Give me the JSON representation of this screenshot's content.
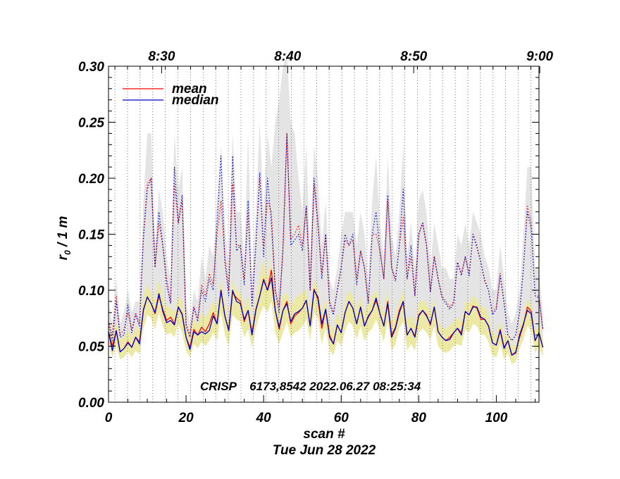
{
  "chart_data": {
    "type": "line",
    "ylabel_r": "r",
    "ylabel_sub": "0",
    "ylabel_rest": " / 1 m",
    "xlabel": "scan #",
    "date_label": "Tue Jun 28 2022",
    "annotation": "CRISP    6173,8542 2022.06.27 08:25:34",
    "xlim": [
      0,
      111
    ],
    "ylim": [
      0,
      0.3
    ],
    "x_ticks": [
      0,
      20,
      40,
      60,
      80,
      100
    ],
    "x_tick_labels": [
      "0",
      "20",
      "40",
      "60",
      "80",
      "100"
    ],
    "y_ticks": [
      0.0,
      0.05,
      0.1,
      0.15,
      0.2,
      0.25,
      0.3
    ],
    "y_tick_labels": [
      "0.00",
      "0.05",
      "0.10",
      "0.15",
      "0.20",
      "0.25",
      "0.30"
    ],
    "top_axis_ticks": [
      {
        "x": 13.7,
        "label": "8:30"
      },
      {
        "x": 46.2,
        "label": "8:40"
      },
      {
        "x": 78.7,
        "label": "8:50"
      },
      {
        "x": 111.2,
        "label": "9:00"
      }
    ],
    "minute_marks": [
      1.65,
      4.9,
      8.15,
      11.4,
      14.65,
      17.9,
      21.15,
      24.4,
      27.65,
      30.9,
      34.15,
      37.4,
      40.65,
      43.9,
      47.15,
      50.4,
      53.65,
      56.9,
      60.15,
      63.4,
      66.65,
      69.9,
      73.15,
      76.4,
      79.65,
      82.9,
      86.15,
      89.4,
      92.65,
      95.9,
      99.15,
      102.4,
      105.65,
      108.9
    ],
    "legend": {
      "position": "top-left",
      "entries": [
        {
          "label": "mean",
          "color": "#ff0000"
        },
        {
          "label": "median",
          "color": "#0000c8"
        }
      ]
    },
    "colors": {
      "mean": "#ff0000",
      "median": "#0000c8",
      "gray_band": "#e4e4e4",
      "yellow_band": "#ece9a4",
      "grid": "#555555"
    },
    "series": [
      {
        "name": "mean (lower)",
        "style": "solid",
        "color": "#ff0000",
        "values": [
          0.063,
          0.05,
          0.064,
          0.045,
          0.048,
          0.054,
          0.049,
          0.058,
          0.054,
          0.083,
          0.094,
          0.088,
          0.079,
          0.095,
          0.083,
          0.073,
          0.076,
          0.07,
          0.085,
          0.079,
          0.058,
          0.049,
          0.065,
          0.06,
          0.067,
          0.063,
          0.07,
          0.08,
          0.07,
          0.1,
          0.077,
          0.064,
          0.098,
          0.093,
          0.09,
          0.072,
          0.082,
          0.062,
          0.083,
          0.095,
          0.11,
          0.1,
          0.118,
          0.082,
          0.065,
          0.082,
          0.09,
          0.07,
          0.077,
          0.08,
          0.084,
          0.091,
          0.068,
          0.101,
          0.092,
          0.066,
          0.083,
          0.06,
          0.052,
          0.069,
          0.062,
          0.08,
          0.09,
          0.084,
          0.07,
          0.085,
          0.068,
          0.076,
          0.082,
          0.091,
          0.079,
          0.068,
          0.09,
          0.06,
          0.067,
          0.082,
          0.09,
          0.06,
          0.066,
          0.059,
          0.078,
          0.082,
          0.078,
          0.069,
          0.085,
          0.063,
          0.058,
          0.055,
          0.058,
          0.062,
          0.066,
          0.062,
          0.081,
          0.078,
          0.086,
          0.084,
          0.074,
          0.074,
          0.068,
          0.053,
          0.051,
          0.065,
          0.049,
          0.055,
          0.042,
          0.045,
          0.058,
          0.069,
          0.085,
          0.081,
          0.055,
          0.062,
          0.049
        ]
      },
      {
        "name": "median (lower)",
        "style": "solid",
        "color": "#0000c8",
        "values": [
          0.063,
          0.046,
          0.064,
          0.045,
          0.048,
          0.053,
          0.049,
          0.058,
          0.052,
          0.082,
          0.094,
          0.088,
          0.08,
          0.097,
          0.081,
          0.071,
          0.073,
          0.069,
          0.085,
          0.078,
          0.058,
          0.047,
          0.063,
          0.06,
          0.063,
          0.061,
          0.064,
          0.077,
          0.07,
          0.1,
          0.077,
          0.064,
          0.1,
          0.09,
          0.088,
          0.074,
          0.082,
          0.06,
          0.082,
          0.095,
          0.109,
          0.1,
          0.111,
          0.082,
          0.067,
          0.082,
          0.088,
          0.072,
          0.079,
          0.081,
          0.084,
          0.091,
          0.068,
          0.1,
          0.094,
          0.07,
          0.083,
          0.058,
          0.052,
          0.069,
          0.062,
          0.08,
          0.09,
          0.084,
          0.07,
          0.085,
          0.068,
          0.077,
          0.082,
          0.093,
          0.079,
          0.068,
          0.088,
          0.058,
          0.066,
          0.08,
          0.09,
          0.06,
          0.066,
          0.058,
          0.077,
          0.082,
          0.077,
          0.07,
          0.085,
          0.063,
          0.058,
          0.055,
          0.056,
          0.062,
          0.066,
          0.06,
          0.081,
          0.078,
          0.085,
          0.085,
          0.076,
          0.074,
          0.068,
          0.053,
          0.051,
          0.064,
          0.048,
          0.055,
          0.042,
          0.044,
          0.06,
          0.07,
          0.082,
          0.079,
          0.055,
          0.062,
          0.049
        ]
      },
      {
        "name": "mean (upper)",
        "style": "dotted",
        "color": "#ff0000",
        "values": [
          0.072,
          0.06,
          0.095,
          0.06,
          0.065,
          0.08,
          0.065,
          0.08,
          0.07,
          0.15,
          0.195,
          0.2,
          0.122,
          0.16,
          0.14,
          0.11,
          0.09,
          0.195,
          0.16,
          0.18,
          0.07,
          0.06,
          0.085,
          0.075,
          0.105,
          0.095,
          0.115,
          0.105,
          0.15,
          0.18,
          0.13,
          0.1,
          0.195,
          0.14,
          0.14,
          0.11,
          0.17,
          0.09,
          0.14,
          0.2,
          0.14,
          0.18,
          0.17,
          0.1,
          0.085,
          0.135,
          0.24,
          0.145,
          0.15,
          0.158,
          0.14,
          0.175,
          0.1,
          0.195,
          0.16,
          0.115,
          0.15,
          0.09,
          0.08,
          0.1,
          0.12,
          0.145,
          0.14,
          0.145,
          0.11,
          0.135,
          0.12,
          0.09,
          0.15,
          0.15,
          0.135,
          0.11,
          0.18,
          0.12,
          0.11,
          0.14,
          0.165,
          0.11,
          0.13,
          0.095,
          0.15,
          0.16,
          0.14,
          0.1,
          0.13,
          0.11,
          0.095,
          0.09,
          0.085,
          0.09,
          0.125,
          0.115,
          0.13,
          0.115,
          0.15,
          0.14,
          0.125,
          0.11,
          0.1,
          0.08,
          0.085,
          0.115,
          0.09,
          0.06,
          0.055,
          0.06,
          0.08,
          0.12,
          0.175,
          0.16,
          0.095,
          0.095,
          0.065
        ]
      },
      {
        "name": "median (upper)",
        "style": "dotted",
        "color": "#0000c8",
        "values": [
          0.07,
          0.055,
          0.09,
          0.058,
          0.06,
          0.087,
          0.062,
          0.078,
          0.068,
          0.145,
          0.19,
          0.2,
          0.12,
          0.17,
          0.14,
          0.105,
          0.088,
          0.21,
          0.16,
          0.185,
          0.068,
          0.058,
          0.085,
          0.072,
          0.1,
          0.09,
          0.11,
          0.1,
          0.16,
          0.22,
          0.125,
          0.095,
          0.22,
          0.135,
          0.14,
          0.105,
          0.18,
          0.085,
          0.14,
          0.205,
          0.13,
          0.2,
          0.16,
          0.1,
          0.08,
          0.14,
          0.24,
          0.14,
          0.145,
          0.15,
          0.135,
          0.175,
          0.1,
          0.2,
          0.16,
          0.11,
          0.15,
          0.088,
          0.078,
          0.1,
          0.12,
          0.15,
          0.14,
          0.15,
          0.105,
          0.135,
          0.12,
          0.088,
          0.15,
          0.17,
          0.135,
          0.11,
          0.185,
          0.12,
          0.108,
          0.14,
          0.19,
          0.11,
          0.14,
          0.095,
          0.15,
          0.16,
          0.14,
          0.098,
          0.13,
          0.11,
          0.093,
          0.088,
          0.083,
          0.088,
          0.125,
          0.113,
          0.13,
          0.113,
          0.15,
          0.138,
          0.125,
          0.108,
          0.1,
          0.078,
          0.083,
          0.113,
          0.088,
          0.06,
          0.055,
          0.06,
          0.08,
          0.12,
          0.17,
          0.155,
          0.095,
          0.093,
          0.065
        ]
      },
      {
        "name": "gray band top",
        "style": "band",
        "color": "#e4e4e4",
        "values": [
          0.09,
          0.07,
          0.11,
          0.07,
          0.08,
          0.1,
          0.08,
          0.09,
          0.09,
          0.18,
          0.24,
          0.24,
          0.14,
          0.19,
          0.17,
          0.13,
          0.11,
          0.24,
          0.19,
          0.21,
          0.09,
          0.07,
          0.1,
          0.09,
          0.13,
          0.11,
          0.14,
          0.13,
          0.18,
          0.23,
          0.16,
          0.12,
          0.24,
          0.17,
          0.17,
          0.13,
          0.24,
          0.11,
          0.17,
          0.25,
          0.17,
          0.24,
          0.21,
          0.25,
          0.27,
          0.3,
          0.31,
          0.25,
          0.24,
          0.2,
          0.17,
          0.23,
          0.13,
          0.23,
          0.2,
          0.14,
          0.18,
          0.11,
          0.1,
          0.12,
          0.15,
          0.17,
          0.17,
          0.17,
          0.14,
          0.17,
          0.15,
          0.11,
          0.18,
          0.22,
          0.16,
          0.13,
          0.22,
          0.15,
          0.13,
          0.17,
          0.23,
          0.13,
          0.16,
          0.12,
          0.18,
          0.19,
          0.17,
          0.12,
          0.16,
          0.14,
          0.12,
          0.12,
          0.11,
          0.11,
          0.15,
          0.14,
          0.16,
          0.14,
          0.17,
          0.16,
          0.15,
          0.13,
          0.12,
          0.1,
          0.1,
          0.14,
          0.11,
          0.08,
          0.07,
          0.08,
          0.1,
          0.15,
          0.21,
          0.21,
          0.12,
          0.12,
          0.08
        ]
      },
      {
        "name": "gray band bottom",
        "style": "band",
        "color": "#e4e4e4",
        "values": [
          0.066,
          0.05,
          0.068,
          0.05,
          0.052,
          0.058,
          0.053,
          0.062,
          0.057,
          0.09,
          0.1,
          0.095,
          0.085,
          0.1,
          0.088,
          0.078,
          0.08,
          0.075,
          0.09,
          0.084,
          0.062,
          0.052,
          0.068,
          0.064,
          0.07,
          0.066,
          0.072,
          0.083,
          0.075,
          0.103,
          0.082,
          0.068,
          0.103,
          0.095,
          0.092,
          0.078,
          0.087,
          0.065,
          0.086,
          0.1,
          0.115,
          0.105,
          0.122,
          0.087,
          0.07,
          0.087,
          0.093,
          0.075,
          0.082,
          0.085,
          0.088,
          0.095,
          0.072,
          0.105,
          0.097,
          0.072,
          0.087,
          0.063,
          0.056,
          0.072,
          0.066,
          0.084,
          0.093,
          0.088,
          0.074,
          0.088,
          0.072,
          0.08,
          0.086,
          0.095,
          0.083,
          0.072,
          0.093,
          0.063,
          0.07,
          0.085,
          0.093,
          0.063,
          0.07,
          0.062,
          0.081,
          0.086,
          0.081,
          0.073,
          0.088,
          0.066,
          0.062,
          0.058,
          0.06,
          0.065,
          0.07,
          0.066,
          0.085,
          0.082,
          0.089,
          0.088,
          0.079,
          0.078,
          0.072,
          0.057,
          0.055,
          0.068,
          0.052,
          0.058,
          0.045,
          0.048,
          0.063,
          0.073,
          0.088,
          0.084,
          0.058,
          0.065,
          0.052
        ]
      },
      {
        "name": "yellow band top",
        "style": "band",
        "color": "#ece9a4",
        "values": [
          0.07,
          0.06,
          0.072,
          0.055,
          0.058,
          0.065,
          0.058,
          0.068,
          0.065,
          0.095,
          0.105,
          0.098,
          0.09,
          0.11,
          0.095,
          0.085,
          0.085,
          0.08,
          0.095,
          0.09,
          0.07,
          0.06,
          0.075,
          0.07,
          0.08,
          0.075,
          0.082,
          0.09,
          0.085,
          0.11,
          0.09,
          0.075,
          0.11,
          0.1,
          0.098,
          0.085,
          0.095,
          0.072,
          0.095,
          0.11,
          0.128,
          0.11,
          0.128,
          0.095,
          0.08,
          0.095,
          0.098,
          0.085,
          0.092,
          0.095,
          0.098,
          0.1,
          0.08,
          0.11,
          0.1,
          0.08,
          0.092,
          0.07,
          0.065,
          0.08,
          0.072,
          0.09,
          0.1,
          0.095,
          0.082,
          0.095,
          0.08,
          0.088,
          0.095,
          0.1,
          0.09,
          0.08,
          0.1,
          0.072,
          0.078,
          0.09,
          0.1,
          0.072,
          0.078,
          0.07,
          0.088,
          0.092,
          0.088,
          0.08,
          0.092,
          0.072,
          0.068,
          0.065,
          0.068,
          0.072,
          0.076,
          0.072,
          0.09,
          0.088,
          0.095,
          0.092,
          0.085,
          0.085,
          0.078,
          0.062,
          0.06,
          0.072,
          0.058,
          0.062,
          0.05,
          0.052,
          0.068,
          0.078,
          0.092,
          0.088,
          0.062,
          0.07,
          0.056
        ]
      },
      {
        "name": "yellow band bottom",
        "style": "band",
        "color": "#ece9a4",
        "values": [
          0.052,
          0.04,
          0.05,
          0.038,
          0.04,
          0.045,
          0.04,
          0.046,
          0.043,
          0.065,
          0.078,
          0.075,
          0.065,
          0.08,
          0.068,
          0.06,
          0.062,
          0.058,
          0.07,
          0.062,
          0.046,
          0.04,
          0.052,
          0.048,
          0.054,
          0.05,
          0.055,
          0.062,
          0.055,
          0.08,
          0.06,
          0.05,
          0.078,
          0.074,
          0.072,
          0.058,
          0.065,
          0.048,
          0.066,
          0.078,
          0.086,
          0.08,
          0.09,
          0.062,
          0.052,
          0.062,
          0.072,
          0.058,
          0.062,
          0.064,
          0.068,
          0.074,
          0.055,
          0.08,
          0.075,
          0.052,
          0.066,
          0.046,
          0.042,
          0.055,
          0.05,
          0.064,
          0.072,
          0.068,
          0.056,
          0.068,
          0.054,
          0.062,
          0.066,
          0.074,
          0.064,
          0.054,
          0.072,
          0.046,
          0.052,
          0.066,
          0.072,
          0.046,
          0.052,
          0.046,
          0.062,
          0.066,
          0.062,
          0.056,
          0.068,
          0.05,
          0.046,
          0.044,
          0.046,
          0.05,
          0.052,
          0.05,
          0.065,
          0.062,
          0.07,
          0.068,
          0.06,
          0.06,
          0.054,
          0.042,
          0.04,
          0.052,
          0.038,
          0.044,
          0.034,
          0.036,
          0.048,
          0.056,
          0.068,
          0.064,
          0.044,
          0.05,
          0.04
        ]
      }
    ]
  }
}
